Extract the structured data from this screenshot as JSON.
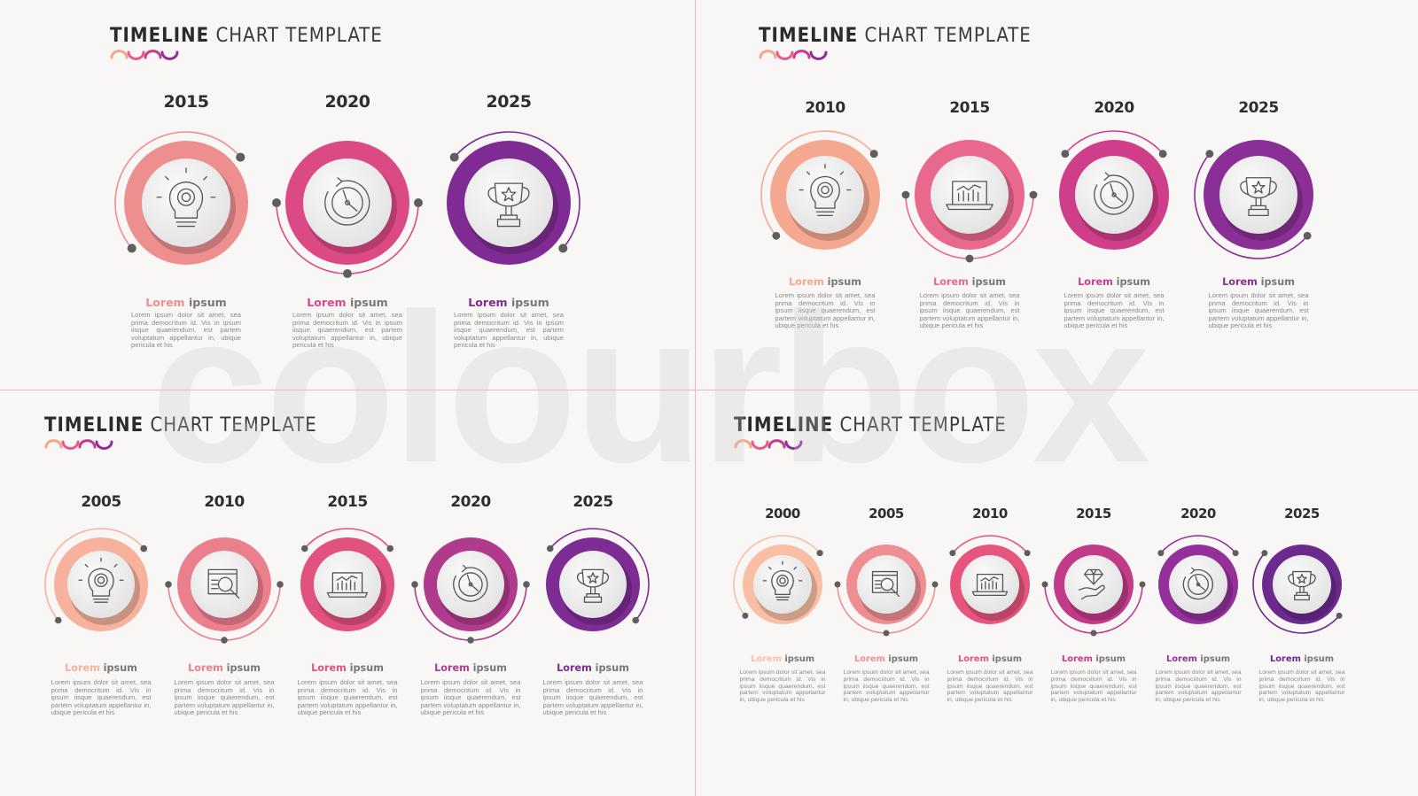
{
  "watermark": "colourbox",
  "title_bold": "TIMELINE",
  "title_light": "CHART TEMPLATE",
  "label_first": "Lorem",
  "label_second": "ipsum",
  "description": "Lorem ipsum dolor sit amet, sea prima democritum id. Vis in ipsum iisque quaerendum, est partem voluptatum appellantur in, ubique pericula et his",
  "wave_colors": [
    "#f4a58a",
    "#e8588a",
    "#c83a8a",
    "#8c2e96"
  ],
  "panels": [
    {
      "name": "top-left",
      "items": [
        {
          "year": "2015",
          "color": "#ee8f8f",
          "icon": "lightbulb-gear-icon"
        },
        {
          "year": "2020",
          "color": "#dc4a86",
          "icon": "clock-icon"
        },
        {
          "year": "2025",
          "color": "#7e2c93",
          "icon": "trophy-icon"
        }
      ]
    },
    {
      "name": "top-right",
      "items": [
        {
          "year": "2010",
          "color": "#f4a890",
          "icon": "lightbulb-gear-icon"
        },
        {
          "year": "2015",
          "color": "#e8688e",
          "icon": "laptop-chart-icon"
        },
        {
          "year": "2020",
          "color": "#cf3e89",
          "icon": "clock-icon"
        },
        {
          "year": "2025",
          "color": "#8a2f95",
          "icon": "trophy-icon"
        }
      ]
    },
    {
      "name": "bottom-left",
      "items": [
        {
          "year": "2005",
          "color": "#f6b29c",
          "icon": "lightbulb-gear-icon"
        },
        {
          "year": "2010",
          "color": "#ec7f8e",
          "icon": "search-browser-icon"
        },
        {
          "year": "2015",
          "color": "#e2527f",
          "icon": "laptop-chart-icon"
        },
        {
          "year": "2020",
          "color": "#b03a8c",
          "icon": "clock-icon"
        },
        {
          "year": "2025",
          "color": "#7c2c93",
          "icon": "trophy-icon"
        }
      ]
    },
    {
      "name": "bottom-right",
      "items": [
        {
          "year": "2000",
          "color": "#f8bfa4",
          "icon": "lightbulb-gear-icon"
        },
        {
          "year": "2005",
          "color": "#ee8e93",
          "icon": "search-browser-icon"
        },
        {
          "year": "2010",
          "color": "#e5557e",
          "icon": "laptop-chart-icon"
        },
        {
          "year": "2015",
          "color": "#c23b88",
          "icon": "diamond-hand-icon"
        },
        {
          "year": "2020",
          "color": "#93309a",
          "icon": "clock-icon"
        },
        {
          "year": "2025",
          "color": "#6c2a8e",
          "icon": "trophy-icon"
        }
      ]
    }
  ]
}
